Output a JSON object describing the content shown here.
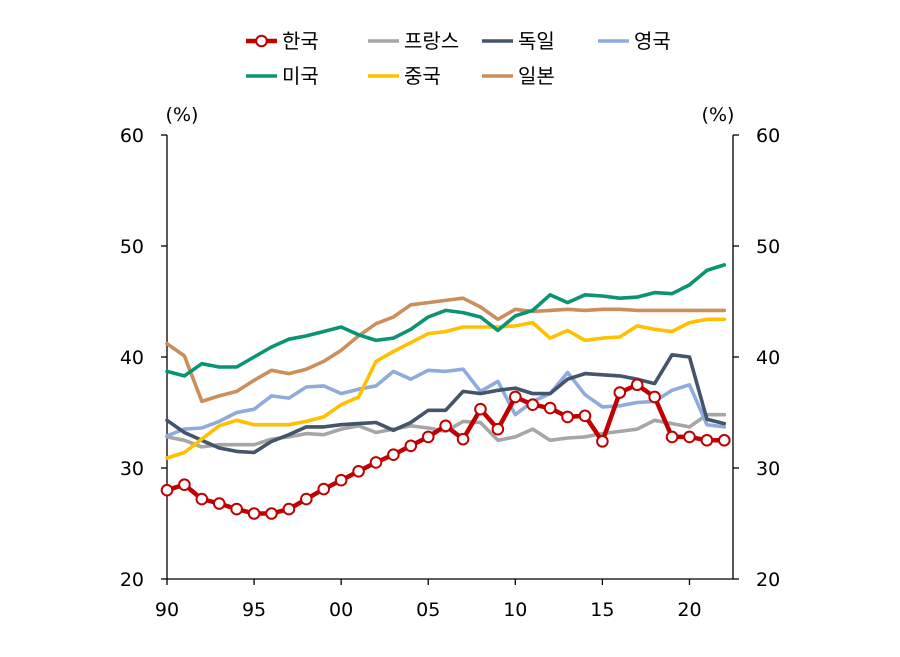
{
  "chart_data": {
    "type": "line",
    "left_unit": "(%)",
    "right_unit": "(%)",
    "ylim": [
      20,
      60
    ],
    "yticks": [
      20,
      30,
      40,
      50,
      60
    ],
    "xlim": [
      1990,
      2022.5
    ],
    "xticks": [
      {
        "value": 1990,
        "label": "90"
      },
      {
        "value": 1995,
        "label": "95"
      },
      {
        "value": 2000,
        "label": "00"
      },
      {
        "value": 2005,
        "label": "05"
      },
      {
        "value": 2010,
        "label": "10"
      },
      {
        "value": 2015,
        "label": "15"
      },
      {
        "value": 2020,
        "label": "20"
      }
    ],
    "x": [
      1990,
      1991,
      1992,
      1993,
      1994,
      1995,
      1996,
      1997,
      1998,
      1999,
      2000,
      2001,
      2002,
      2003,
      2004,
      2005,
      2006,
      2007,
      2008,
      2009,
      2010,
      2011,
      2012,
      2013,
      2014,
      2015,
      2016,
      2017,
      2018,
      2019,
      2020,
      2021,
      2022
    ],
    "grid": false,
    "legend_position": "top",
    "series": [
      {
        "name": "한국",
        "color": "#c00000",
        "marker": true,
        "values": [
          28.0,
          28.5,
          27.2,
          26.8,
          26.3,
          25.9,
          25.9,
          26.3,
          27.2,
          28.1,
          28.9,
          29.7,
          30.5,
          31.2,
          32.0,
          32.8,
          33.8,
          32.6,
          35.3,
          33.5,
          36.4,
          35.7,
          35.4,
          34.6,
          34.7,
          32.4,
          36.8,
          37.5,
          36.4,
          32.8,
          32.8,
          32.5,
          32.5
        ]
      },
      {
        "name": "프랑스",
        "color": "#a6a6a6",
        "marker": false,
        "values": [
          32.8,
          32.5,
          31.9,
          32.1,
          32.1,
          32.1,
          32.6,
          32.8,
          33.1,
          33.0,
          33.5,
          33.8,
          33.2,
          33.5,
          33.8,
          33.6,
          33.3,
          34.2,
          34.1,
          32.5,
          32.8,
          33.5,
          32.5,
          32.7,
          32.8,
          33.1,
          33.3,
          33.5,
          34.3,
          34.0,
          33.7,
          34.8,
          34.8
        ]
      },
      {
        "name": "독일",
        "color": "#44546a",
        "marker": false,
        "values": [
          34.3,
          33.2,
          32.5,
          31.8,
          31.5,
          31.4,
          32.4,
          33.0,
          33.7,
          33.7,
          33.9,
          34.0,
          34.1,
          33.4,
          34.1,
          35.2,
          35.2,
          36.9,
          36.7,
          37.0,
          37.2,
          36.7,
          36.7,
          38.0,
          38.5,
          38.4,
          38.3,
          38.0,
          37.6,
          40.2,
          40.0,
          34.4,
          34.0
        ]
      },
      {
        "name": "영국",
        "color": "#8faadc",
        "marker": false,
        "values": [
          32.9,
          33.5,
          33.6,
          34.2,
          35.0,
          35.3,
          36.5,
          36.3,
          37.3,
          37.4,
          36.7,
          37.1,
          37.4,
          38.7,
          38.0,
          38.8,
          38.7,
          38.9,
          36.9,
          37.8,
          34.8,
          36.0,
          36.7,
          38.6,
          36.6,
          35.5,
          35.6,
          35.9,
          36.0,
          37.0,
          37.5,
          33.9,
          33.7
        ]
      },
      {
        "name": "미국",
        "color": "#0a9474",
        "marker": false,
        "values": [
          38.7,
          38.3,
          39.4,
          39.1,
          39.1,
          40.0,
          40.9,
          41.6,
          41.9,
          42.3,
          42.7,
          42.0,
          41.5,
          41.7,
          42.5,
          43.6,
          44.2,
          44.0,
          43.6,
          42.4,
          43.7,
          44.2,
          45.6,
          44.9,
          45.6,
          45.5,
          45.3,
          45.4,
          45.8,
          45.7,
          46.5,
          47.8,
          48.3
        ]
      },
      {
        "name": "중국",
        "color": "#ffc000",
        "marker": false,
        "values": [
          30.9,
          31.4,
          32.6,
          33.8,
          34.3,
          33.9,
          33.9,
          33.9,
          34.2,
          34.6,
          35.7,
          36.4,
          39.6,
          40.5,
          41.3,
          42.1,
          42.3,
          42.7,
          42.7,
          42.7,
          42.8,
          43.1,
          41.7,
          42.4,
          41.5,
          41.7,
          41.8,
          42.8,
          42.5,
          42.3,
          43.1,
          43.4,
          43.4
        ]
      },
      {
        "name": "일본",
        "color": "#cc8f5c",
        "marker": false,
        "values": [
          41.2,
          40.1,
          36.0,
          36.5,
          36.9,
          37.9,
          38.8,
          38.5,
          38.9,
          39.6,
          40.6,
          41.9,
          43.0,
          43.6,
          44.7,
          44.9,
          45.1,
          45.3,
          44.5,
          43.4,
          44.3,
          44.1,
          44.2,
          44.3,
          44.2,
          44.3,
          44.3,
          44.2,
          44.2,
          44.2,
          44.2,
          44.2,
          44.2
        ]
      }
    ]
  }
}
